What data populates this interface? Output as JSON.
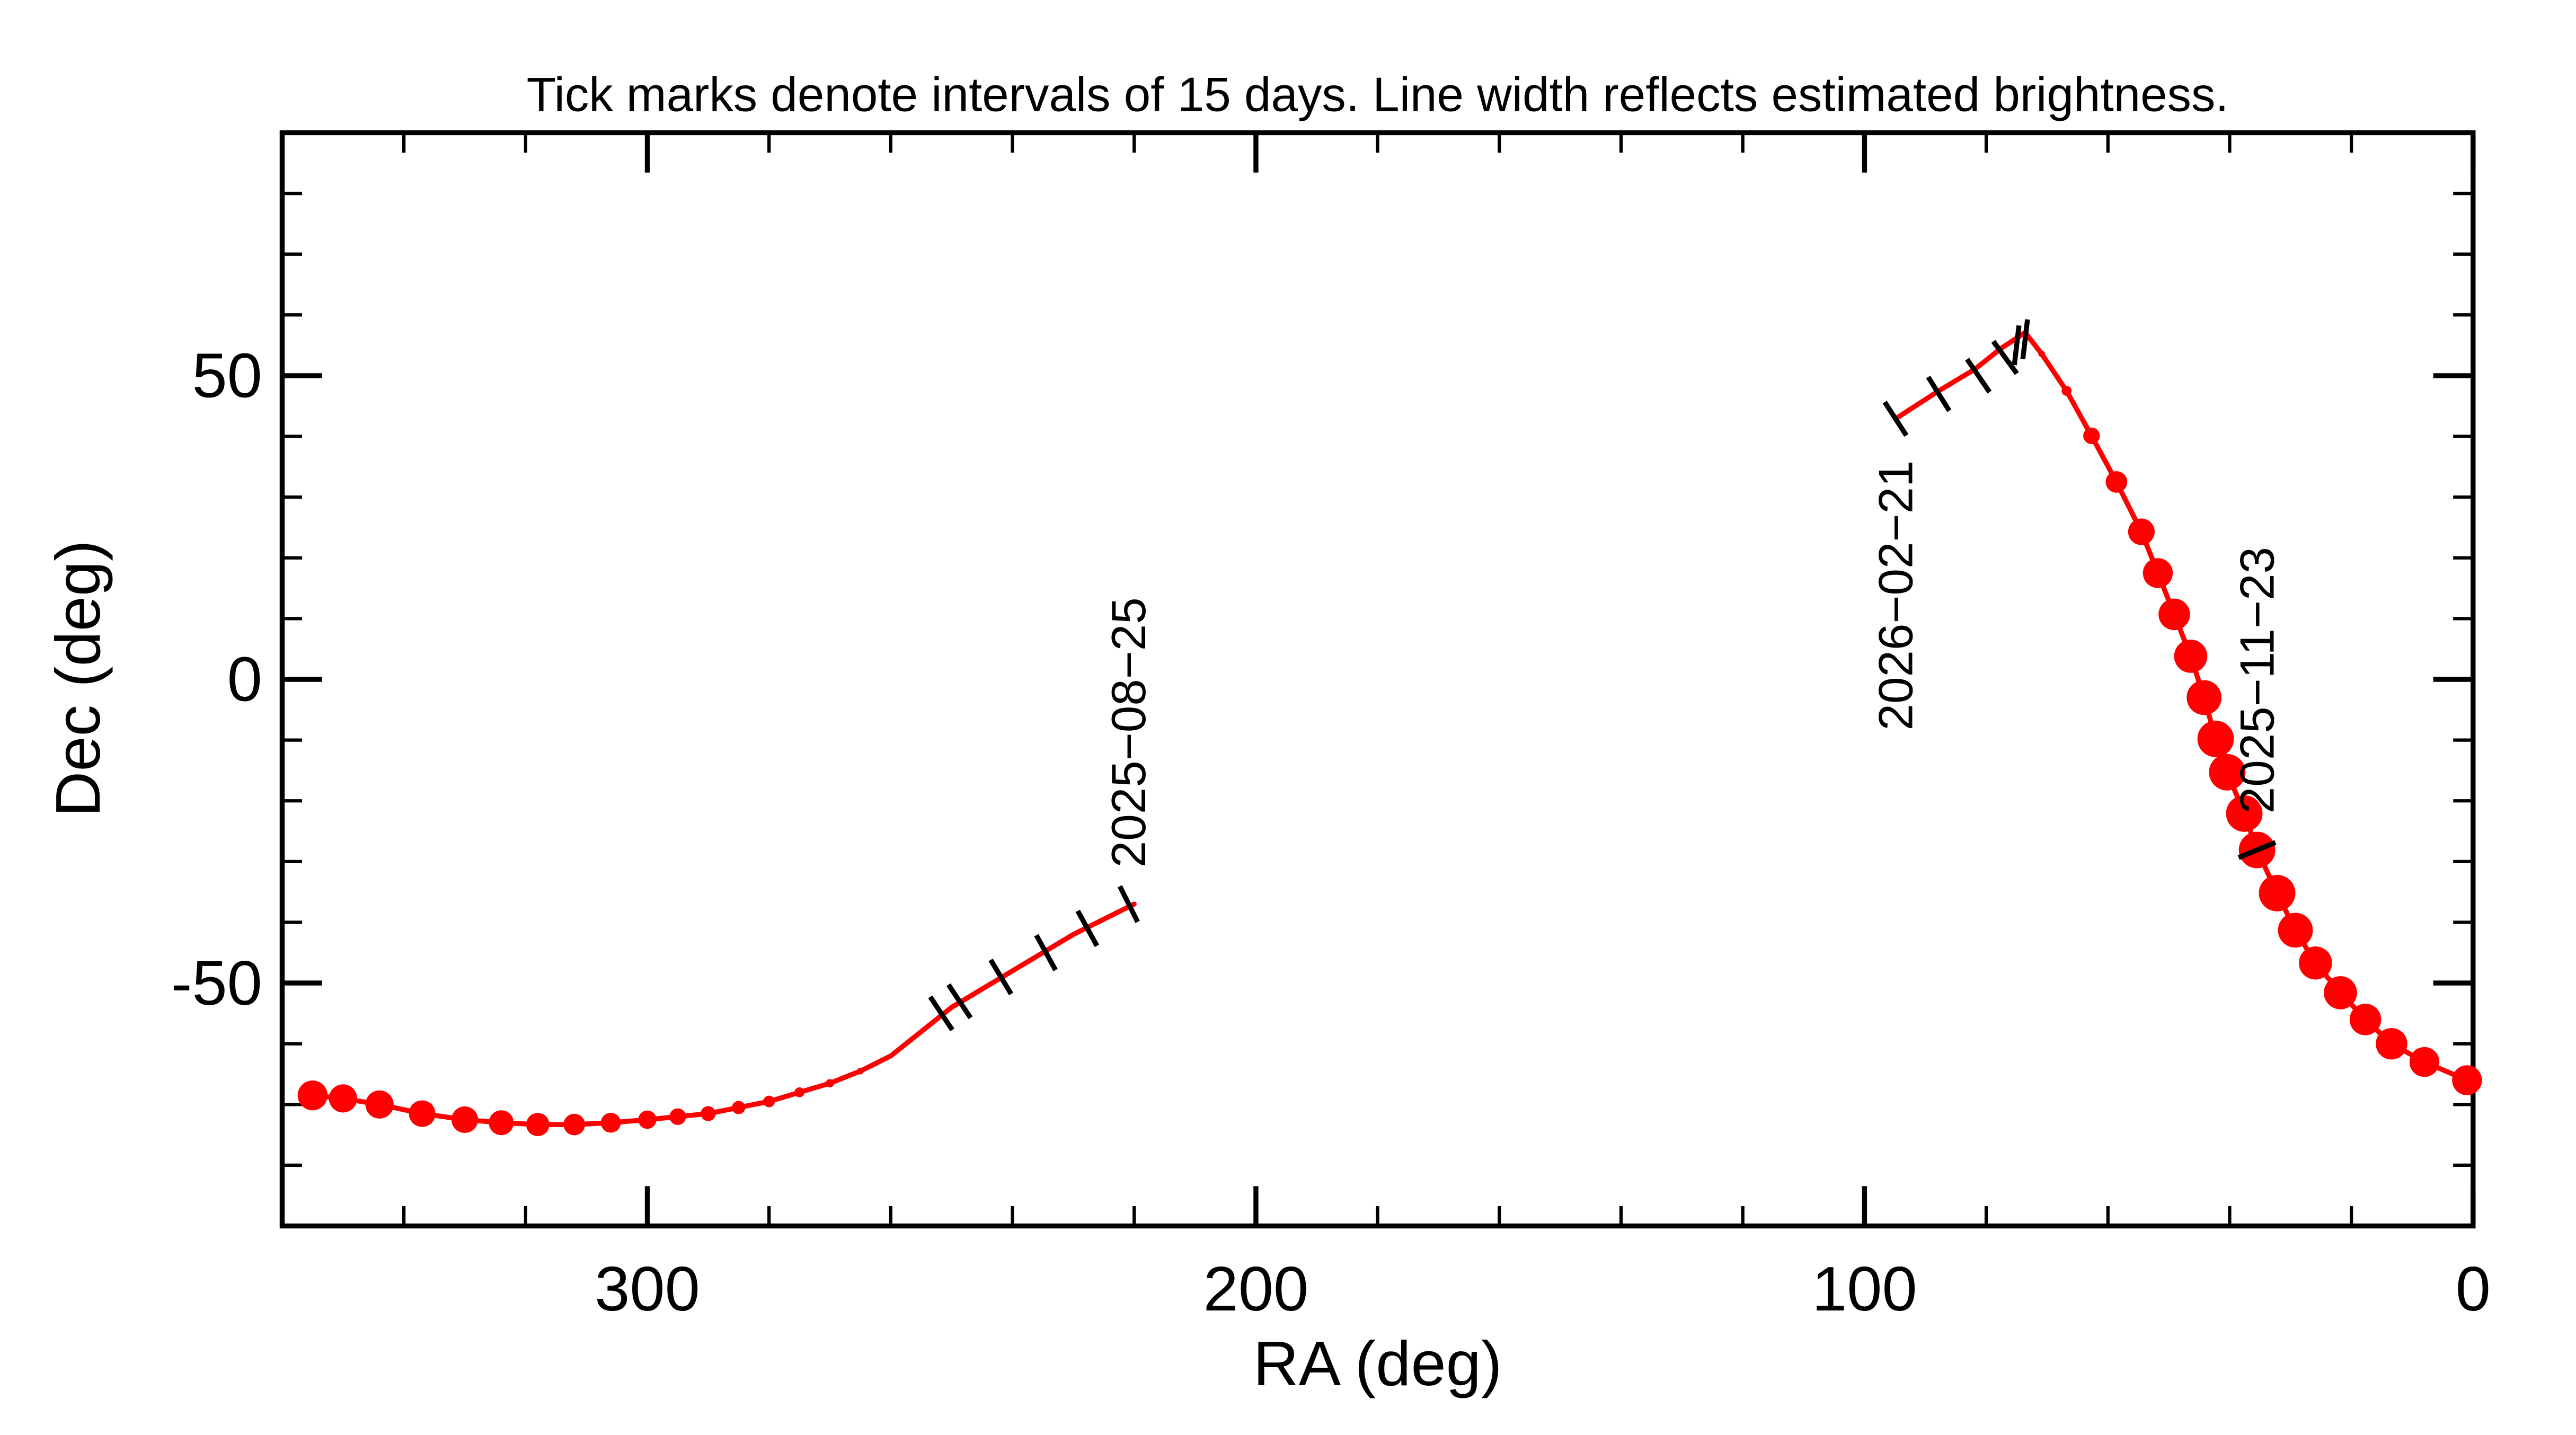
{
  "chart_data": {
    "type": "line",
    "title": "Tick marks denote intervals of 15 days.  Line width reflects estimated brightness.",
    "x_label": "RA (deg)",
    "y_label": "Dec (deg)",
    "xlim": [
      360,
      0
    ],
    "ylim": [
      -90,
      90
    ],
    "xticks": [
      300,
      200,
      100,
      0
    ],
    "yticks": [
      -50,
      0,
      50
    ],
    "x_minor_step": 20,
    "y_minor_step": 10,
    "series": [
      {
        "color": "#ff0000",
        "x": [
          220,
          230,
          240,
          250,
          255,
          260,
          265,
          270,
          275,
          280,
          285,
          290,
          295,
          300,
          306,
          312,
          318,
          324,
          330,
          337,
          344,
          350,
          355,
          null,
          1,
          8,
          13.4,
          17.7,
          21.8,
          25.9,
          29.2,
          32.2,
          35.5,
          37.6,
          40.4,
          42.3,
          44.2,
          46.4,
          49.1,
          51.8,
          54.5,
          58.6,
          62.7,
          66.8,
          70.9,
          73.6,
          77.7,
          81.8,
          87.8,
          94.9
        ],
        "y": [
          -37,
          -42,
          -48,
          -54,
          -58,
          -62,
          -64.5,
          -66.5,
          -68,
          -69.5,
          -70.5,
          -71.5,
          -72,
          -72.5,
          -73,
          -73.3,
          -73.3,
          -73,
          -72.5,
          -71.5,
          -70,
          -69,
          -68.5,
          null,
          -66,
          -63,
          -60,
          -56,
          -51.6,
          -46.7,
          -41.3,
          -35.2,
          -28.1,
          -22.1,
          -15.3,
          -9.8,
          -3,
          3.8,
          10.7,
          17.5,
          24.3,
          32.5,
          40.1,
          47.5,
          53.6,
          57.1,
          54.4,
          51.1,
          47.5,
          42.9
        ],
        "sizes": [
          3,
          3,
          3,
          3,
          3,
          3,
          4,
          5,
          6,
          7,
          8,
          9,
          10,
          11,
          12,
          13,
          14,
          15,
          16,
          16,
          17,
          17,
          18,
          null,
          18,
          18,
          19,
          19,
          20,
          20,
          21,
          22,
          22,
          22,
          22,
          22,
          21,
          20,
          19,
          18,
          16,
          13,
          10,
          6,
          4,
          2,
          2,
          2,
          2,
          2
        ]
      }
    ],
    "interval_ticks": {
      "x": [
        220.9,
        227.7,
        234.5,
        241.9,
        248.7,
        251.7,
        35.5,
        94.9,
        87.8,
        81.3,
        76.9,
        75,
        73.6
      ],
      "y": [
        -37,
        -41,
        -45,
        -49,
        -53,
        -55,
        -28.1,
        42.9,
        47,
        50,
        53,
        55,
        56
      ]
    },
    "annotations": [
      {
        "text": "2025−08−25",
        "x": 220.9,
        "y": -37,
        "position": "above"
      },
      {
        "text": "2025−11−23",
        "x": 35.5,
        "y": -28.1,
        "position": "above"
      },
      {
        "text": "2026−02−21",
        "x": 94.9,
        "y": 42.9,
        "position": "below"
      }
    ]
  }
}
